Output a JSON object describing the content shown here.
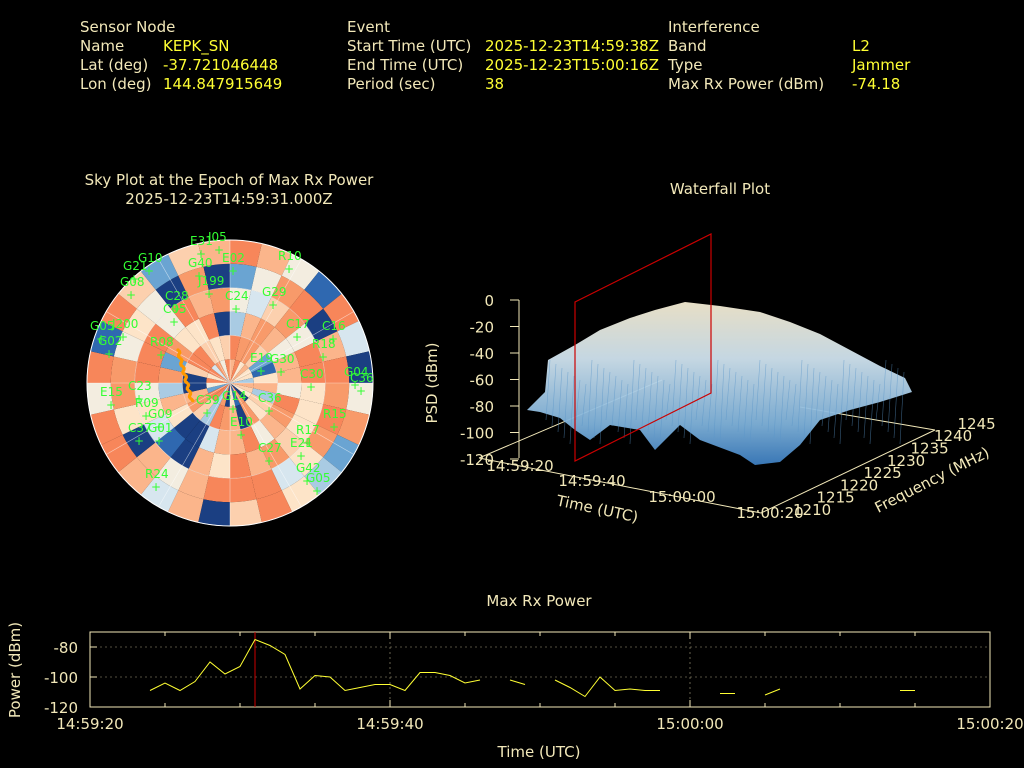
{
  "header": {
    "node": {
      "title": "Sensor Node",
      "rows": [
        {
          "label": "Name",
          "value": "KEPK_SN"
        },
        {
          "label": "Lat (deg)",
          "value": "-37.721046448"
        },
        {
          "label": "Lon (deg)",
          "value": "144.847915649"
        }
      ]
    },
    "event": {
      "title": "Event",
      "rows": [
        {
          "label": "Start Time (UTC)",
          "value": "2025-12-23T14:59:38Z"
        },
        {
          "label": "End Time (UTC)",
          "value": "2025-12-23T15:00:16Z"
        },
        {
          "label": "Period (sec)",
          "value": "38"
        }
      ]
    },
    "interference": {
      "title": "Interference",
      "rows": [
        {
          "label": "Band",
          "value": "L2"
        },
        {
          "label": "Type",
          "value": "Jammer"
        },
        {
          "label": "Max Rx Power (dBm)",
          "value": "-74.18"
        }
      ]
    }
  },
  "colors": {
    "label": "#f2e8b9",
    "value": "#ffff33",
    "satellite": "#33ff33",
    "marker": "#cc0000",
    "power_line": "#ffff33"
  },
  "chart_data": [
    {
      "type": "polar-heatmap",
      "title": "Sky Plot at the Epoch of Max Rx Power",
      "subtitle": "2025-12-23T14:59:31.000Z",
      "satellites": [
        "E31",
        "I05",
        "E02",
        "R10",
        "G10",
        "G21",
        "G40",
        "G08",
        "J199",
        "G29",
        "C28",
        "C24",
        "C05",
        "G05",
        "J200",
        "G02",
        "R08",
        "R18",
        "C17",
        "C16",
        "E19",
        "G30",
        "C30",
        "G04",
        "C36",
        "C23",
        "E15",
        "R09",
        "C39",
        "G09",
        "G14",
        "C37",
        "G01",
        "E10",
        "C36",
        "R15",
        "R17",
        "E21",
        "C27",
        "G42",
        "G05",
        "R24"
      ]
    },
    {
      "type": "surface",
      "title": "Waterfall Plot",
      "zlabel": "PSD (dBm)",
      "xlabel": "Time (UTC)",
      "ylabel": "Frequency (MHz)",
      "zticks": [
        "0",
        "-20",
        "-40",
        "-60",
        "-80",
        "-100",
        "-120"
      ],
      "xticks": [
        "14:59:20",
        "14:59:40",
        "15:00:00",
        "15:00:20"
      ],
      "yticks": [
        "1210",
        "1215",
        "1220",
        "1225",
        "1230",
        "1235",
        "1240",
        "1245"
      ],
      "marker_time": "14:59:31"
    },
    {
      "type": "line",
      "title": "Max Rx Power",
      "xlabel": "Time (UTC)",
      "ylabel": "Power (dBm)",
      "xticks": [
        "14:59:20",
        "14:59:40",
        "15:00:00",
        "15:00:20"
      ],
      "yticks": [
        "-80",
        "-100",
        "-120"
      ],
      "xlim": [
        0,
        60
      ],
      "ylim": [
        -120,
        -70
      ],
      "marker_x": 11,
      "series": [
        {
          "points": [
            [
              4,
              -109
            ],
            [
              5,
              -104
            ],
            [
              6,
              -109
            ],
            [
              7,
              -103
            ],
            [
              8,
              -90
            ],
            [
              9,
              -98
            ],
            [
              10,
              -93
            ],
            [
              11,
              -75
            ],
            [
              12,
              -79
            ],
            [
              13,
              -85
            ],
            [
              14,
              -108
            ],
            [
              15,
              -99
            ],
            [
              16,
              -100
            ],
            [
              17,
              -109
            ],
            [
              18,
              -107
            ],
            [
              19,
              -105
            ],
            [
              20,
              -105
            ],
            [
              21,
              -109
            ],
            [
              22,
              -97
            ],
            [
              23,
              -97
            ],
            [
              24,
              -99
            ],
            [
              25,
              -104
            ],
            [
              26,
              -102
            ]
          ]
        },
        {
          "points": [
            [
              28,
              -102
            ],
            [
              29,
              -105
            ]
          ]
        },
        {
          "points": [
            [
              31,
              -102
            ],
            [
              32,
              -107
            ],
            [
              33,
              -113
            ],
            [
              34,
              -100
            ],
            [
              35,
              -109
            ],
            [
              36,
              -108
            ],
            [
              37,
              -109
            ],
            [
              38,
              -109
            ]
          ]
        },
        {
          "points": [
            [
              42,
              -111
            ],
            [
              43,
              -111
            ]
          ]
        },
        {
          "points": [
            [
              45,
              -112
            ],
            [
              46,
              -108
            ]
          ]
        },
        {
          "points": [
            [
              54,
              -109
            ],
            [
              55,
              -109
            ]
          ]
        }
      ]
    }
  ]
}
